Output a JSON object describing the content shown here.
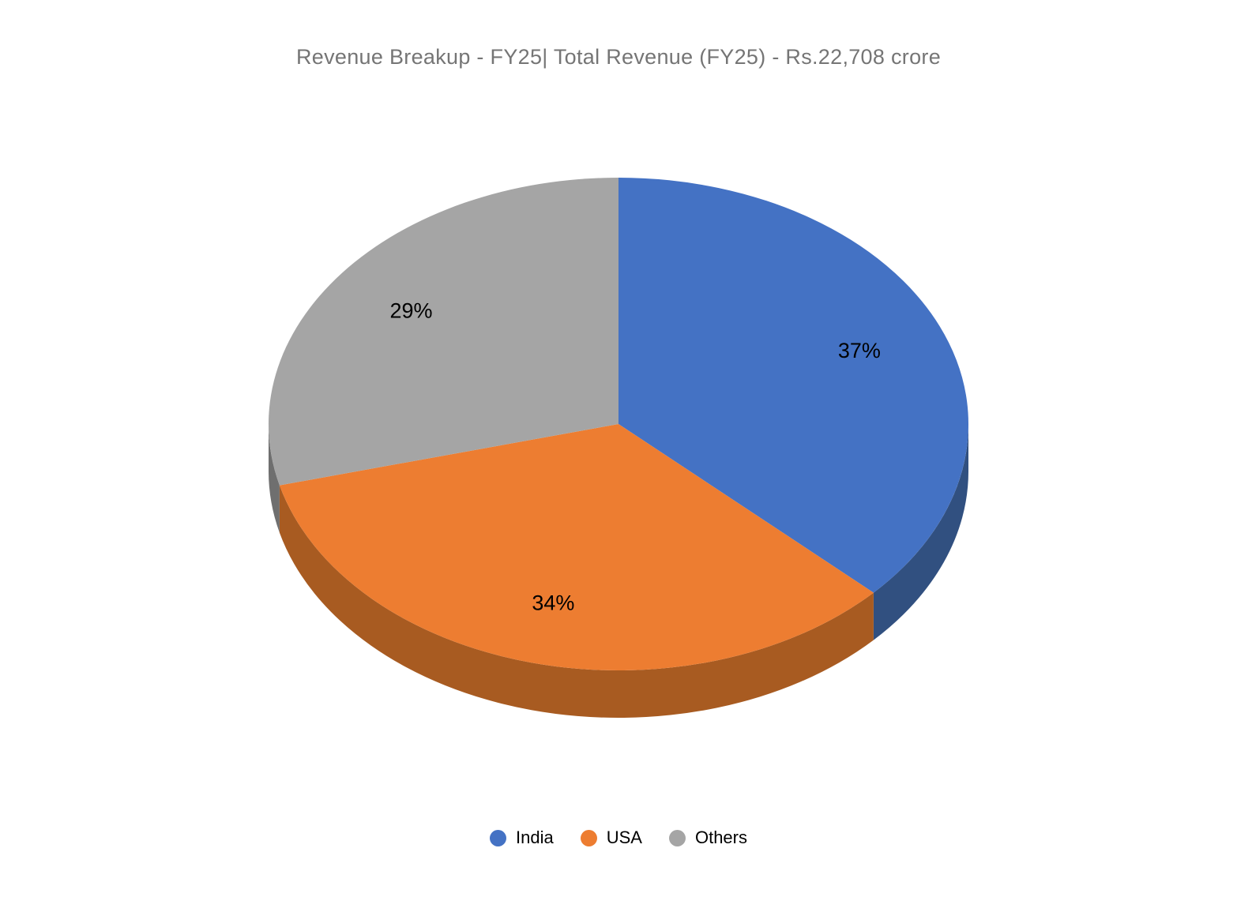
{
  "chart": {
    "title_color": "#757575",
    "data_label_color": "#000000",
    "legend_text_color": "#000000",
    "background": "#ffffff"
  },
  "chart_data": {
    "type": "pie",
    "style": "3d",
    "title": "Revenue Breakup - FY25| Total Revenue (FY25) - Rs.22,708 crore",
    "categories": [
      "India",
      "USA",
      "Others"
    ],
    "values": [
      37,
      34,
      29
    ],
    "unit": "%",
    "data_labels": [
      "37%",
      "34%",
      "29%"
    ],
    "colors": [
      "#4472C4",
      "#ED7D31",
      "#A5A5A5"
    ],
    "side_colors": [
      "#315080",
      "#A85B21",
      "#6F6F6F"
    ],
    "start_angle_deg": 0,
    "direction": "clockwise",
    "legend": {
      "position": "bottom",
      "entries": [
        "India",
        "USA",
        "Others"
      ]
    }
  }
}
